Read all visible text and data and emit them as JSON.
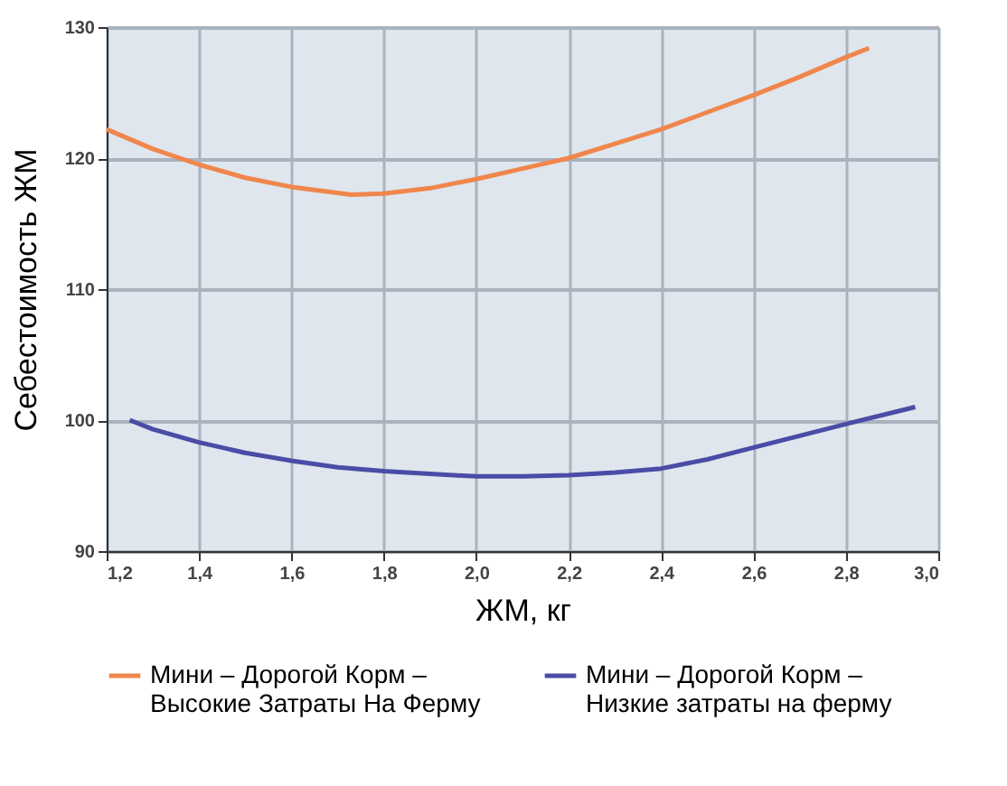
{
  "chart_data": {
    "type": "line",
    "xlabel": "ЖМ, кг",
    "ylabel": "Себестоимость ЖМ",
    "xlim": [
      1.2,
      3.0
    ],
    "ylim": [
      90,
      130
    ],
    "xticks": [
      {
        "value": 1.2,
        "label": "1,2"
      },
      {
        "value": 1.4,
        "label": "1,4"
      },
      {
        "value": 1.6,
        "label": "1,6"
      },
      {
        "value": 1.8,
        "label": "1,8"
      },
      {
        "value": 2.0,
        "label": "2,0"
      },
      {
        "value": 2.2,
        "label": "2,2"
      },
      {
        "value": 2.4,
        "label": "2,4"
      },
      {
        "value": 2.6,
        "label": "2,6"
      },
      {
        "value": 2.8,
        "label": "2,8"
      },
      {
        "value": 3.0,
        "label": "3,0"
      }
    ],
    "yticks": [
      90,
      100,
      110,
      120,
      130
    ],
    "grid": true,
    "legend": "bottom",
    "marker": "none",
    "line_style": "solid",
    "series": [
      {
        "name": "Мини – Дорогой Корм – Высокие Затраты На Ферму",
        "color": "#f0864c",
        "x": [
          1.2,
          1.3,
          1.4,
          1.5,
          1.6,
          1.73,
          1.8,
          1.9,
          2.0,
          2.1,
          2.2,
          2.3,
          2.4,
          2.5,
          2.6,
          2.7,
          2.8,
          2.85
        ],
        "values": [
          122.2,
          120.7,
          119.5,
          118.5,
          117.8,
          117.2,
          117.3,
          117.7,
          118.4,
          119.2,
          120.0,
          121.1,
          122.2,
          123.5,
          124.8,
          126.2,
          127.7,
          128.4
        ]
      },
      {
        "name": "Мини – Дорогой Корм – Низкие затраты на ферму",
        "color": "#4a4ca6",
        "x": [
          1.25,
          1.3,
          1.4,
          1.5,
          1.6,
          1.7,
          1.8,
          1.9,
          2.0,
          2.1,
          2.2,
          2.3,
          2.4,
          2.5,
          2.6,
          2.7,
          2.8,
          2.95
        ],
        "values": [
          100.0,
          99.3,
          98.3,
          97.5,
          96.9,
          96.4,
          96.1,
          95.9,
          95.7,
          95.7,
          95.8,
          96.0,
          96.3,
          97.0,
          97.9,
          98.8,
          99.7,
          101.0
        ]
      }
    ]
  }
}
